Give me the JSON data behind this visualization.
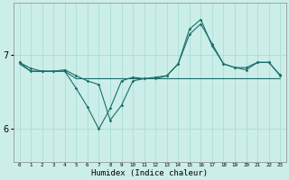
{
  "xlabel": "Humidex (Indice chaleur)",
  "background_color": "#cceee8",
  "grid_color": "#aaddd8",
  "line_color": "#1a6e6a",
  "x_labels": [
    "0",
    "1",
    "2",
    "3",
    "4",
    "5",
    "6",
    "7",
    "8",
    "9",
    "10",
    "11",
    "12",
    "13",
    "14",
    "15",
    "16",
    "17",
    "18",
    "19",
    "20",
    "21",
    "22",
    "23"
  ],
  "y_ticks": [
    6,
    7
  ],
  "ylim": [
    5.55,
    7.7
  ],
  "xlim": [
    -0.5,
    23.5
  ],
  "series1": [
    6.9,
    6.82,
    6.78,
    6.78,
    6.8,
    6.72,
    6.65,
    6.6,
    6.12,
    6.32,
    6.65,
    6.68,
    6.68,
    6.72,
    6.88,
    7.28,
    7.42,
    7.15,
    6.88,
    6.83,
    6.8,
    6.9,
    6.9,
    6.73
  ],
  "series2": [
    6.88,
    6.78,
    6.78,
    6.78,
    6.78,
    6.68,
    6.68,
    6.68,
    6.68,
    6.68,
    6.68,
    6.68,
    6.68,
    6.68,
    6.68,
    6.68,
    6.68,
    6.68,
    6.68,
    6.68,
    6.68,
    6.68,
    6.68,
    6.68
  ],
  "series3": [
    6.9,
    6.78,
    6.78,
    6.78,
    6.78,
    6.55,
    6.3,
    6.0,
    6.28,
    6.65,
    6.7,
    6.68,
    6.7,
    6.72,
    6.88,
    7.35,
    7.48,
    7.12,
    6.88,
    6.83,
    6.83,
    6.9,
    6.9,
    6.72
  ]
}
